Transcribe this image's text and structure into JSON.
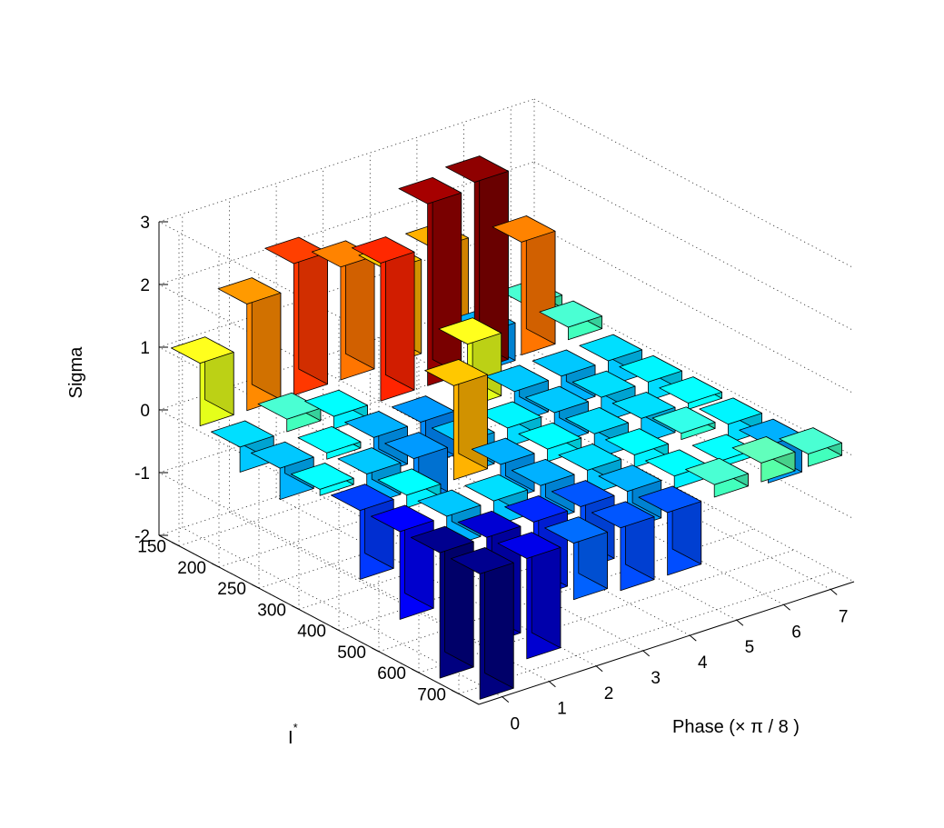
{
  "chart_data": {
    "type": "bar3d",
    "xlabel": "Phase (× π / 8 )",
    "ylabel_base": "I",
    "ylabel_superscript": "*",
    "zlabel": "Sigma",
    "x_categories": [
      "0",
      "1",
      "2",
      "3",
      "4",
      "5",
      "6",
      "7"
    ],
    "y_categories": [
      "150",
      "200",
      "250",
      "300",
      "400",
      "500",
      "600",
      "700"
    ],
    "z_ticks": [
      "-2",
      "-1",
      "0",
      "1",
      "2",
      "3"
    ],
    "zlim": [
      -2,
      3
    ],
    "grid": true,
    "colormap": "jet",
    "bars": [
      {
        "phase": "0",
        "i_star": "150",
        "value": 1.0
      },
      {
        "phase": "1",
        "i_star": "150",
        "value": 1.7
      },
      {
        "phase": "2",
        "i_star": "150",
        "value": 2.1
      },
      {
        "phase": "3",
        "i_star": "150",
        "value": 1.8
      },
      {
        "phase": "4",
        "i_star": "150",
        "value": 1.5
      },
      {
        "phase": "5",
        "i_star": "150",
        "value": 1.6
      },
      {
        "phase": "6",
        "i_star": "150",
        "value": -0.6
      },
      {
        "phase": "7",
        "i_star": "150",
        "value": 0.2
      },
      {
        "phase": "0",
        "i_star": "200",
        "value": -0.4
      },
      {
        "phase": "1",
        "i_star": "200",
        "value": 0.2
      },
      {
        "phase": "2",
        "i_star": "200",
        "value": -0.2
      },
      {
        "phase": "3",
        "i_star": "200",
        "value": 2.2
      },
      {
        "phase": "4",
        "i_star": "200",
        "value": 2.9
      },
      {
        "phase": "5",
        "i_star": "200",
        "value": 3.0
      },
      {
        "phase": "6",
        "i_star": "200",
        "value": 1.8
      },
      {
        "phase": "7",
        "i_star": "200",
        "value": 0.2
      },
      {
        "phase": "0",
        "i_star": "250",
        "value": -0.5
      },
      {
        "phase": "1",
        "i_star": "250",
        "value": -0.1
      },
      {
        "phase": "2",
        "i_star": "250",
        "value": -0.6
      },
      {
        "phase": "3",
        "i_star": "250",
        "value": -0.7
      },
      {
        "phase": "4",
        "i_star": "250",
        "value": 1.0
      },
      {
        "phase": "5",
        "i_star": "250",
        "value": -0.5
      },
      {
        "phase": "6",
        "i_star": "250",
        "value": -0.5
      },
      {
        "phase": "7",
        "i_star": "250",
        "value": -0.4
      },
      {
        "phase": "0",
        "i_star": "300",
        "value": -0.1
      },
      {
        "phase": "1",
        "i_star": "300",
        "value": -0.5
      },
      {
        "phase": "2",
        "i_star": "300",
        "value": -0.7
      },
      {
        "phase": "3",
        "i_star": "300",
        "value": -0.5
      },
      {
        "phase": "4",
        "i_star": "300",
        "value": -0.3
      },
      {
        "phase": "5",
        "i_star": "300",
        "value": -0.5
      },
      {
        "phase": "6",
        "i_star": "300",
        "value": -0.4
      },
      {
        "phase": "7",
        "i_star": "300",
        "value": -0.3
      },
      {
        "phase": "0",
        "i_star": "400",
        "value": -1.1
      },
      {
        "phase": "1",
        "i_star": "400",
        "value": -0.2
      },
      {
        "phase": "2",
        "i_star": "400",
        "value": 1.5
      },
      {
        "phase": "3",
        "i_star": "400",
        "value": -0.6
      },
      {
        "phase": "4",
        "i_star": "400",
        "value": -0.2
      },
      {
        "phase": "5",
        "i_star": "400",
        "value": -0.4
      },
      {
        "phase": "6",
        "i_star": "400",
        "value": -0.4
      },
      {
        "phase": "7",
        "i_star": "400",
        "value": -0.1
      },
      {
        "phase": "0",
        "i_star": "500",
        "value": -1.4
      },
      {
        "phase": "1",
        "i_star": "500",
        "value": -0.5
      },
      {
        "phase": "2",
        "i_star": "500",
        "value": -0.4
      },
      {
        "phase": "3",
        "i_star": "500",
        "value": -0.6
      },
      {
        "phase": "4",
        "i_star": "500",
        "value": -0.4
      },
      {
        "phase": "5",
        "i_star": "500",
        "value": -0.2
      },
      {
        "phase": "6",
        "i_star": "500",
        "value": 0.1
      },
      {
        "phase": "7",
        "i_star": "500",
        "value": -0.3
      },
      {
        "phase": "0",
        "i_star": "600",
        "value": -2.0
      },
      {
        "phase": "1",
        "i_star": "600",
        "value": -1.7
      },
      {
        "phase": "2",
        "i_star": "600",
        "value": -1.2
      },
      {
        "phase": "3",
        "i_star": "600",
        "value": -1.0
      },
      {
        "phase": "4",
        "i_star": "600",
        "value": -0.6
      },
      {
        "phase": "5",
        "i_star": "600",
        "value": -0.2
      },
      {
        "phase": "6",
        "i_star": "600",
        "value": -0.1
      },
      {
        "phase": "7",
        "i_star": "600",
        "value": -0.6
      },
      {
        "phase": "0",
        "i_star": "700",
        "value": -2.0
      },
      {
        "phase": "1",
        "i_star": "700",
        "value": -1.6
      },
      {
        "phase": "2",
        "i_star": "700",
        "value": -0.9
      },
      {
        "phase": "3",
        "i_star": "700",
        "value": -1.0
      },
      {
        "phase": "4",
        "i_star": "700",
        "value": -1.0
      },
      {
        "phase": "5",
        "i_star": "700",
        "value": 0.2
      },
      {
        "phase": "6",
        "i_star": "700",
        "value": 0.3
      },
      {
        "phase": "7",
        "i_star": "700",
        "value": 0.2
      }
    ]
  }
}
